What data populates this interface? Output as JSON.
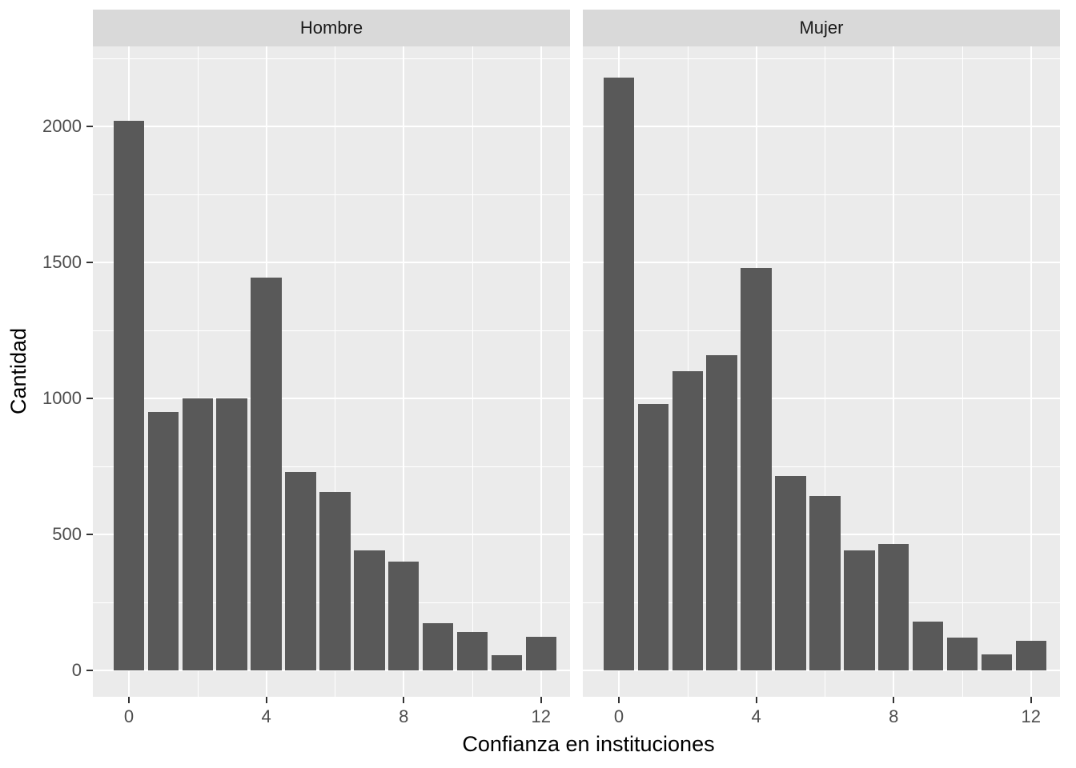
{
  "chart_data": {
    "type": "bar",
    "title": "",
    "xlabel": "Confianza en instituciones",
    "ylabel": "Cantidad",
    "x": [
      0,
      1,
      2,
      3,
      4,
      5,
      6,
      7,
      8,
      9,
      10,
      11,
      12
    ],
    "series": [
      {
        "name": "Hombre",
        "values": [
          2020,
          950,
          1000,
          1000,
          1445,
          730,
          655,
          440,
          400,
          175,
          140,
          55,
          125
        ]
      },
      {
        "name": "Mujer",
        "values": [
          2180,
          980,
          1100,
          1160,
          1480,
          715,
          640,
          440,
          465,
          180,
          120,
          60,
          110
        ]
      }
    ],
    "facet_labels": [
      "Hombre",
      "Mujer"
    ],
    "x_axis": {
      "tick_values": [
        0,
        4,
        8,
        12
      ],
      "tick_labels": [
        "0",
        "4",
        "8",
        "12"
      ],
      "minor_tick_values": [
        2,
        6,
        10
      ],
      "range": [
        -1.05,
        12.85
      ]
    },
    "y_axis": {
      "tick_values": [
        0,
        500,
        1000,
        1500,
        2000
      ],
      "tick_labels": [
        "0",
        "500",
        "1000",
        "1500",
        "2000"
      ],
      "minor_tick_values": [
        250,
        750,
        1250,
        1750,
        2250
      ],
      "range": [
        -97,
        2294
      ]
    },
    "legend": "none",
    "grid": "on",
    "style": {
      "bar_color": "#595959",
      "panel_background": "#EBEBEB",
      "strip_background": "#D9D9D9",
      "grid_color": "#FFFFFF",
      "tick_label_color": "#4D4D4D",
      "strip_text_color": "#1A1A1A",
      "axis_title_color": "#000000",
      "tick_mark_color": "#333333"
    }
  }
}
